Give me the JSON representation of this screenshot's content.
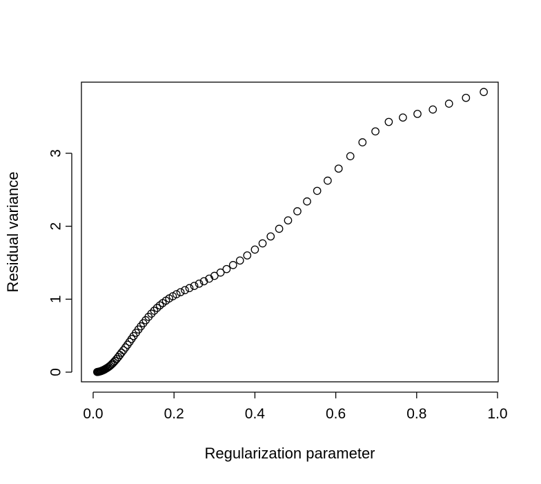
{
  "chart_data": {
    "type": "scatter",
    "xlabel": "Regularization parameter",
    "ylabel": "Residual variance",
    "xlim": [
      0.0,
      1.0
    ],
    "ylim": [
      0,
      4
    ],
    "xticks": [
      0.0,
      0.2,
      0.4,
      0.6,
      0.8,
      1.0
    ],
    "xtick_labels": [
      "0.0",
      "0.2",
      "0.4",
      "0.6",
      "0.8",
      "1.0"
    ],
    "yticks": [
      0,
      1,
      2,
      3
    ],
    "ytick_labels": [
      "0",
      "1",
      "2",
      "3"
    ],
    "grid": false,
    "marker": "open-circle",
    "series": [
      {
        "points": [
          [
            0.01,
            0.002
          ],
          [
            0.012,
            0.004
          ],
          [
            0.014,
            0.006
          ],
          [
            0.016,
            0.009
          ],
          [
            0.018,
            0.012
          ],
          [
            0.02,
            0.016
          ],
          [
            0.022,
            0.02
          ],
          [
            0.024,
            0.025
          ],
          [
            0.026,
            0.03
          ],
          [
            0.028,
            0.036
          ],
          [
            0.03,
            0.043
          ],
          [
            0.033,
            0.052
          ],
          [
            0.036,
            0.063
          ],
          [
            0.039,
            0.075
          ],
          [
            0.042,
            0.088
          ],
          [
            0.045,
            0.103
          ],
          [
            0.048,
            0.119
          ],
          [
            0.051,
            0.136
          ],
          [
            0.054,
            0.155
          ],
          [
            0.058,
            0.18
          ],
          [
            0.062,
            0.207
          ],
          [
            0.066,
            0.236
          ],
          [
            0.07,
            0.266
          ],
          [
            0.075,
            0.3
          ],
          [
            0.08,
            0.338
          ],
          [
            0.085,
            0.376
          ],
          [
            0.09,
            0.415
          ],
          [
            0.095,
            0.455
          ],
          [
            0.1,
            0.495
          ],
          [
            0.106,
            0.54
          ],
          [
            0.112,
            0.585
          ],
          [
            0.118,
            0.628
          ],
          [
            0.124,
            0.671
          ],
          [
            0.13,
            0.712
          ],
          [
            0.137,
            0.758
          ],
          [
            0.144,
            0.802
          ],
          [
            0.151,
            0.842
          ],
          [
            0.158,
            0.88
          ],
          [
            0.165,
            0.915
          ],
          [
            0.172,
            0.947
          ],
          [
            0.18,
            0.98
          ],
          [
            0.188,
            1.01
          ],
          [
            0.197,
            1.04
          ],
          [
            0.206,
            1.068
          ],
          [
            0.216,
            1.096
          ],
          [
            0.227,
            1.124
          ],
          [
            0.238,
            1.152
          ],
          [
            0.25,
            1.182
          ],
          [
            0.262,
            1.213
          ],
          [
            0.274,
            1.246
          ],
          [
            0.287,
            1.282
          ],
          [
            0.3,
            1.32
          ],
          [
            0.315,
            1.365
          ],
          [
            0.33,
            1.413
          ],
          [
            0.346,
            1.468
          ],
          [
            0.363,
            1.53
          ],
          [
            0.381,
            1.6
          ],
          [
            0.4,
            1.68
          ],
          [
            0.419,
            1.765
          ],
          [
            0.439,
            1.86
          ],
          [
            0.46,
            1.965
          ],
          [
            0.482,
            2.08
          ],
          [
            0.505,
            2.205
          ],
          [
            0.529,
            2.34
          ],
          [
            0.554,
            2.485
          ],
          [
            0.58,
            2.625
          ],
          [
            0.607,
            2.79
          ],
          [
            0.636,
            2.96
          ],
          [
            0.666,
            3.15
          ],
          [
            0.698,
            3.3
          ],
          [
            0.731,
            3.43
          ],
          [
            0.766,
            3.49
          ],
          [
            0.802,
            3.54
          ],
          [
            0.84,
            3.6
          ],
          [
            0.88,
            3.68
          ],
          [
            0.922,
            3.76
          ],
          [
            0.966,
            3.84
          ]
        ]
      }
    ]
  }
}
